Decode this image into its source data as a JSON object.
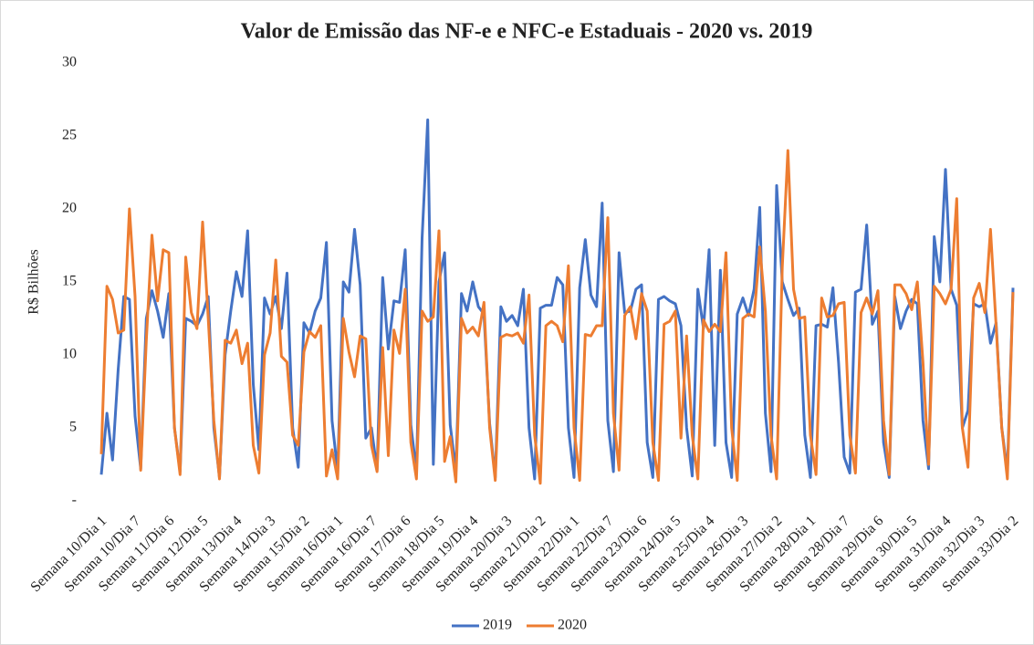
{
  "chart_data": {
    "type": "line",
    "title": "Valor de Emissão das NF-e e NFC-e Estaduais - 2020 vs. 2019",
    "y_label": "R$ Bilhões",
    "categories": [
      "Semana 10/Dia 1",
      null,
      null,
      null,
      null,
      null,
      "Semana 10/Dia 7",
      null,
      null,
      null,
      null,
      null,
      "Semana 11/Dia 6",
      null,
      null,
      null,
      null,
      null,
      "Semana 12/Dia 5",
      null,
      null,
      null,
      null,
      null,
      "Semana 13/Dia 4",
      null,
      null,
      null,
      null,
      null,
      "Semana 14/Dia 3",
      null,
      null,
      null,
      null,
      null,
      "Semana 15/Dia 2",
      null,
      null,
      null,
      null,
      null,
      "Semana 16/Dia 1",
      null,
      null,
      null,
      null,
      null,
      "Semana 16/Dia 7",
      null,
      null,
      null,
      null,
      null,
      "Semana 17/Dia 6",
      null,
      null,
      null,
      null,
      null,
      "Semana 18/Dia 5",
      null,
      null,
      null,
      null,
      null,
      "Semana 19/Dia 4",
      null,
      null,
      null,
      null,
      null,
      "Semana 20/Dia 3",
      null,
      null,
      null,
      null,
      null,
      "Semana 21/Dia 2",
      null,
      null,
      null,
      null,
      null,
      "Semana 22/Dia 1",
      null,
      null,
      null,
      null,
      null,
      "Semana 22/Dia 7",
      null,
      null,
      null,
      null,
      null,
      "Semana 23/Dia 6",
      null,
      null,
      null,
      null,
      null,
      "Semana 24/Dia 5",
      null,
      null,
      null,
      null,
      null,
      "Semana 25/Dia 4",
      null,
      null,
      null,
      null,
      null,
      "Semana 26/Dia 3",
      null,
      null,
      null,
      null,
      null,
      "Semana 27/Dia 2",
      null,
      null,
      null,
      null,
      null,
      "Semana 28/Dia 1",
      null,
      null,
      null,
      null,
      null,
      "Semana 28/Dia 7",
      null,
      null,
      null,
      null,
      null,
      "Semana 29/Dia 6",
      null,
      null,
      null,
      null,
      null,
      "Semana 30/Dia 5",
      null,
      null,
      null,
      null,
      null,
      "Semana 31/Dia 4",
      null,
      null,
      null,
      null,
      null,
      "Semana 32/Dia 3",
      null,
      null,
      null,
      null,
      null,
      "Semana 33/Dia 2"
    ],
    "series": [
      {
        "name": "2019",
        "color": "#4472c4",
        "values": [
          1.8,
          6.0,
          2.8,
          9.0,
          14.0,
          13.8,
          5.8,
          2.2,
          12.5,
          14.4,
          13.0,
          11.2,
          14.2,
          5.0,
          2.0,
          12.5,
          12.3,
          12.0,
          12.8,
          14.0,
          5.0,
          1.6,
          10.0,
          13.0,
          15.7,
          14.0,
          18.5,
          8.0,
          3.5,
          13.9,
          12.8,
          14.0,
          11.8,
          15.6,
          5.0,
          2.3,
          12.2,
          11.5,
          13.0,
          13.9,
          17.7,
          5.5,
          2.0,
          15.0,
          14.3,
          18.6,
          14.8,
          4.3,
          5.0,
          2.1,
          15.3,
          10.4,
          13.7,
          13.6,
          17.2,
          5.2,
          2.0,
          18.0,
          26.1,
          2.5,
          15.0,
          17.0,
          5.2,
          2.0,
          14.2,
          13.0,
          15.0,
          13.3,
          12.8,
          5.3,
          1.6,
          13.3,
          12.3,
          12.7,
          12.0,
          14.5,
          5.0,
          1.5,
          13.2,
          13.4,
          13.4,
          15.3,
          14.8,
          5.0,
          1.6,
          14.6,
          17.9,
          14.1,
          13.3,
          20.4,
          5.5,
          2.0,
          17.0,
          12.9,
          13.0,
          14.5,
          14.8,
          4.0,
          1.6,
          13.8,
          14.0,
          13.7,
          13.5,
          12.0,
          5.0,
          1.7,
          14.5,
          11.8,
          17.2,
          3.8,
          15.8,
          4.0,
          1.6,
          12.8,
          13.9,
          12.7,
          14.5,
          20.1,
          6.0,
          2.0,
          21.6,
          15.0,
          13.8,
          12.7,
          13.2,
          4.5,
          1.6,
          12.0,
          12.1,
          11.9,
          14.6,
          9.5,
          3.0,
          1.9,
          14.3,
          14.5,
          18.9,
          12.1,
          13.0,
          4.0,
          1.6,
          14.0,
          11.8,
          13.0,
          13.8,
          13.5,
          5.5,
          2.2,
          18.1,
          15.0,
          22.7,
          14.5,
          13.4,
          5.0,
          6.2,
          13.5,
          13.3,
          13.5,
          10.8,
          12.2,
          5.0,
          2.0,
          14.6
        ]
      },
      {
        "name": "2020",
        "color": "#ed7d31",
        "values": [
          3.2,
          14.7,
          13.8,
          11.5,
          11.7,
          20.0,
          14.0,
          2.1,
          11.0,
          18.2,
          13.7,
          17.2,
          17.0,
          5.0,
          1.8,
          16.7,
          12.9,
          11.8,
          19.1,
          12.5,
          5.5,
          1.5,
          11.0,
          10.8,
          11.7,
          9.4,
          10.8,
          3.8,
          1.9,
          10.0,
          11.5,
          16.5,
          9.9,
          9.5,
          4.5,
          3.8,
          10.2,
          11.6,
          11.2,
          12.0,
          1.7,
          3.5,
          1.5,
          12.5,
          10.2,
          8.5,
          11.3,
          11.1,
          3.8,
          2.0,
          10.5,
          3.1,
          11.7,
          10.1,
          14.5,
          4.0,
          1.5,
          13.0,
          12.3,
          12.6,
          18.5,
          2.7,
          4.4,
          1.3,
          12.5,
          11.5,
          11.9,
          11.3,
          13.6,
          5.0,
          1.4,
          11.2,
          11.4,
          11.3,
          11.5,
          10.8,
          14.1,
          4.5,
          1.2,
          12.0,
          12.3,
          12.0,
          10.9,
          16.1,
          5.0,
          1.4,
          11.4,
          11.3,
          12.0,
          12.0,
          19.4,
          6.0,
          2.1,
          12.7,
          13.3,
          11.1,
          14.2,
          13.0,
          4.0,
          1.4,
          12.1,
          12.3,
          13.0,
          4.3,
          11.3,
          4.5,
          1.5,
          12.4,
          11.6,
          12.1,
          11.6,
          17.0,
          5.0,
          1.4,
          12.5,
          12.8,
          12.6,
          17.4,
          13.0,
          4.5,
          1.5,
          16.0,
          24.0,
          14.5,
          12.5,
          12.6,
          4.5,
          1.8,
          13.9,
          12.6,
          12.7,
          13.5,
          13.6,
          4.5,
          1.9,
          12.9,
          13.9,
          12.8,
          14.4,
          5.5,
          1.8,
          14.8,
          14.8,
          14.2,
          13.1,
          15.0,
          9.5,
          2.5,
          14.7,
          14.2,
          13.5,
          14.5,
          20.7,
          5.0,
          2.3,
          13.9,
          14.9,
          12.9,
          18.6,
          12.0,
          5.0,
          1.5,
          14.3
        ]
      }
    ],
    "ylim": [
      0,
      30
    ],
    "yticks": [
      {
        "value": 0,
        "label": "-"
      },
      5,
      10,
      15,
      20,
      25,
      30
    ],
    "grid": false,
    "legend": "bottom"
  }
}
